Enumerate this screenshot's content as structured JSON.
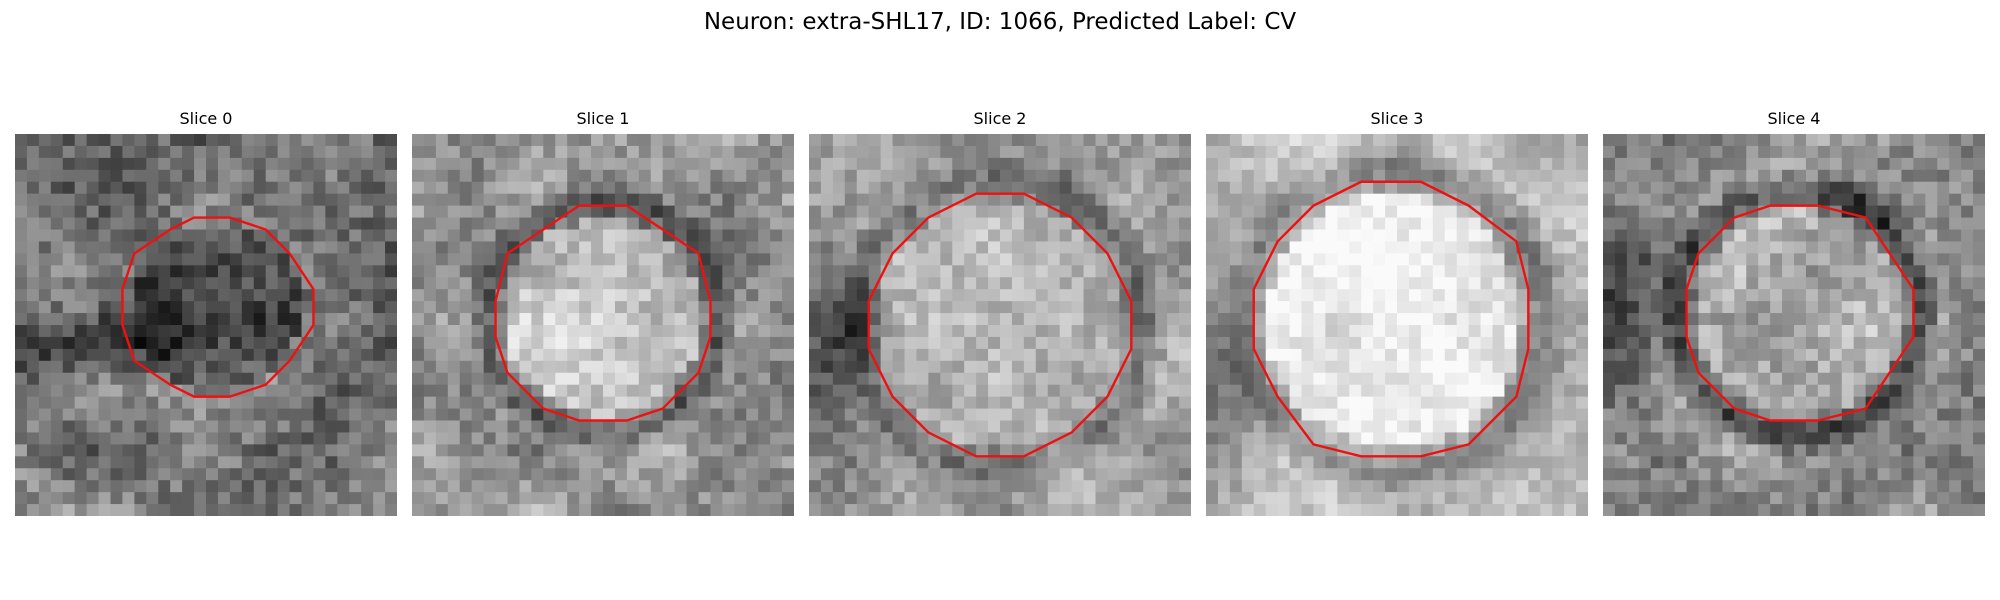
{
  "figure": {
    "title": "Neuron: extra-SHL17, ID: 1066, Predicted Label: CV",
    "contour_color": "#ee1111",
    "panels": [
      {
        "title": "Slice 0",
        "seed": 11,
        "base": 120,
        "contrast": 70,
        "interior_shift": -40,
        "ring_shift": 0,
        "dark_blob": [
          0.15,
          0.55,
          0.25,
          0.08
        ]
      },
      {
        "title": "Slice 1",
        "seed": 23,
        "base": 150,
        "contrast": 60,
        "interior_shift": 40,
        "ring_shift": -70,
        "dark_blob": null
      },
      {
        "title": "Slice 2",
        "seed": 37,
        "base": 165,
        "contrast": 55,
        "interior_shift": 15,
        "ring_shift": -55,
        "dark_blob": [
          0.05,
          0.6,
          0.12,
          0.3
        ]
      },
      {
        "title": "Slice 3",
        "seed": 41,
        "base": 185,
        "contrast": 45,
        "interior_shift": 45,
        "ring_shift": -60,
        "dark_blob": [
          0.02,
          0.65,
          0.1,
          0.25
        ]
      },
      {
        "title": "Slice 4",
        "seed": 53,
        "base": 150,
        "contrast": 65,
        "interior_shift": 30,
        "ring_shift": -90,
        "dark_blob": [
          0.05,
          0.5,
          0.12,
          0.2
        ]
      }
    ]
  }
}
